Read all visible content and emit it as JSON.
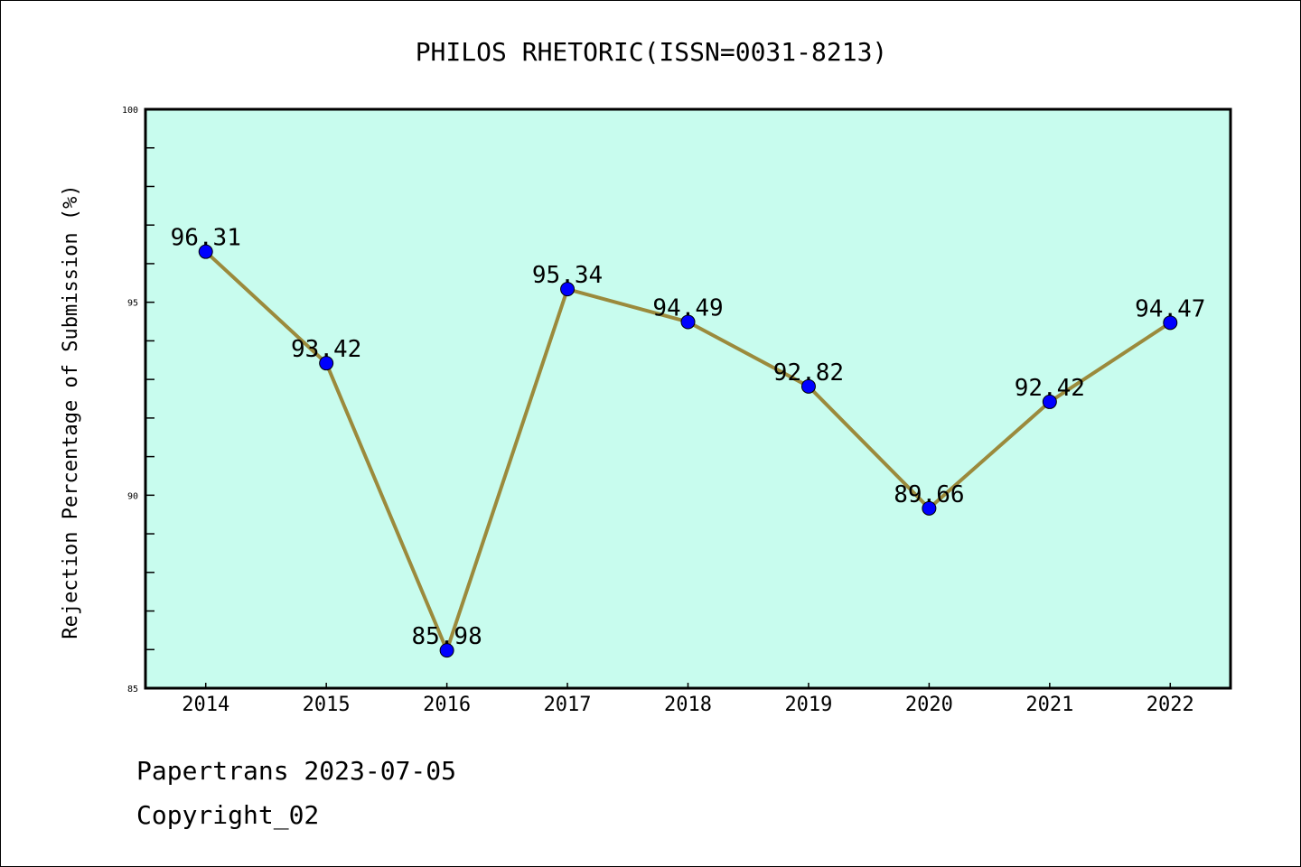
{
  "chart_data": {
    "type": "line",
    "title": "PHILOS RHETORIC(ISSN=0031-8213)",
    "xlabel": "",
    "ylabel": "Rejection Percentage of Submission (%)",
    "categories": [
      "2014",
      "2015",
      "2016",
      "2017",
      "2018",
      "2019",
      "2020",
      "2021",
      "2022"
    ],
    "values": [
      96.31,
      93.42,
      85.98,
      95.34,
      94.49,
      92.82,
      89.66,
      92.42,
      94.47
    ],
    "data_labels": [
      "96.31",
      "93.42",
      "85.98",
      "95.34",
      "94.49",
      "92.82",
      "89.66",
      "92.42",
      "94.47"
    ],
    "ylim": [
      85,
      100
    ],
    "yticks": [
      85,
      90,
      95,
      100
    ],
    "ytick_labels": [
      "85",
      "90",
      "95",
      "100"
    ],
    "y_minor_step": 1,
    "grid": false,
    "colors": {
      "background": "#c8fcee",
      "line": "#9b8a3c",
      "marker": "#0000ff"
    }
  },
  "footer": {
    "line1": "Papertrans 2023-07-05",
    "line2": "Copyright_02"
  }
}
